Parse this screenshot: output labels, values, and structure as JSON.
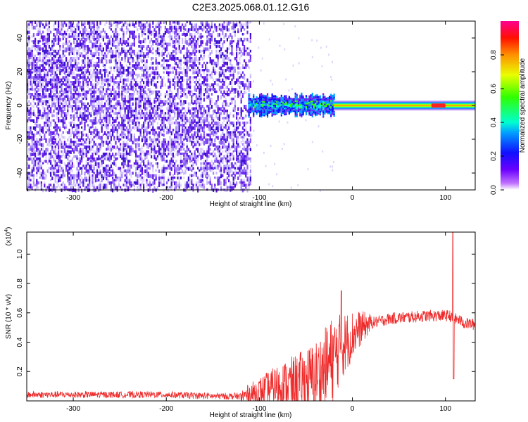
{
  "title": "C2E3.2025.068.01.12.G16",
  "colors": {
    "snr_line": "#ee2a2a",
    "spectrogram_noise": "#5a10e0",
    "axis": "#000000"
  },
  "chart_data": [
    {
      "type": "heatmap",
      "xlabel": "Height of straight line (km)",
      "ylabel": "Frequency (Hz)",
      "xlim": [
        -350,
        132
      ],
      "ylim": [
        -50,
        50
      ],
      "xticks": [
        -300,
        -200,
        -100,
        0,
        100
      ],
      "yticks": [
        -40,
        -20,
        0,
        20,
        40
      ],
      "xtick_labels": [
        "-300",
        "-200",
        "-100",
        "0",
        "100"
      ],
      "ytick_labels": [
        "-40",
        "-20",
        "0",
        "20",
        "40"
      ],
      "colorbar": {
        "label": "Normalized spectral amplitude",
        "range": [
          0,
          1
        ],
        "ticks": [
          0.0,
          0.2,
          0.4,
          0.6,
          0.8
        ],
        "tick_labels": [
          "0.0",
          "0.2",
          "0.4",
          "0.6",
          "0.8"
        ],
        "colormap": "rainbow"
      },
      "regions": [
        {
          "x_range": [
            -350,
            -110
          ],
          "freq_range": [
            -50,
            50
          ],
          "amplitude": 0.1,
          "description_note": "broadband noise"
        },
        {
          "x_range": [
            -112,
            -20
          ],
          "freq_range": [
            -6,
            6
          ],
          "amplitude": 0.45
        },
        {
          "x_range": [
            -20,
            132
          ],
          "freq_range": [
            -2.5,
            2.5
          ],
          "amplitude": 0.75
        },
        {
          "x_range": [
            85,
            100
          ],
          "freq_range": [
            -1.5,
            1.5
          ],
          "amplitude": 0.95
        }
      ]
    },
    {
      "type": "line",
      "xlabel": "Height of straight line (km)",
      "ylabel": "SNR (10 * v/v)",
      "y_multiplier_label": "(x10",
      "y_multiplier_exp": "4",
      "xlim": [
        -350,
        132
      ],
      "ylim": [
        0,
        1.15
      ],
      "xticks": [
        -300,
        -200,
        -100,
        0,
        100
      ],
      "yticks": [
        0.2,
        0.4,
        0.6,
        0.8,
        1.0
      ],
      "xtick_labels": [
        "-300",
        "-200",
        "-100",
        "0",
        "100"
      ],
      "ytick_labels": [
        "0.2",
        "0.4",
        "0.6",
        "0.8",
        "1.0"
      ],
      "series": [
        {
          "x": [
            -350,
            -300,
            -250,
            -200,
            -150,
            -120,
            -100,
            -80,
            -60,
            -40,
            -30,
            -20,
            -10,
            0,
            10,
            20,
            40,
            60,
            80,
            100,
            105,
            108,
            110,
            115,
            120,
            132
          ],
          "y": [
            0.04,
            0.04,
            0.04,
            0.04,
            0.03,
            0.03,
            0.06,
            0.1,
            0.12,
            0.16,
            0.22,
            0.3,
            0.38,
            0.45,
            0.5,
            0.53,
            0.56,
            0.57,
            0.58,
            0.58,
            0.58,
            0.55,
            0.56,
            0.55,
            0.53,
            0.52
          ],
          "spikes": [
            {
              "x": -12,
              "y": 0.75
            },
            {
              "x": 108,
              "y": 1.15
            },
            {
              "x": 109,
              "y": 0.15
            }
          ]
        }
      ]
    }
  ]
}
